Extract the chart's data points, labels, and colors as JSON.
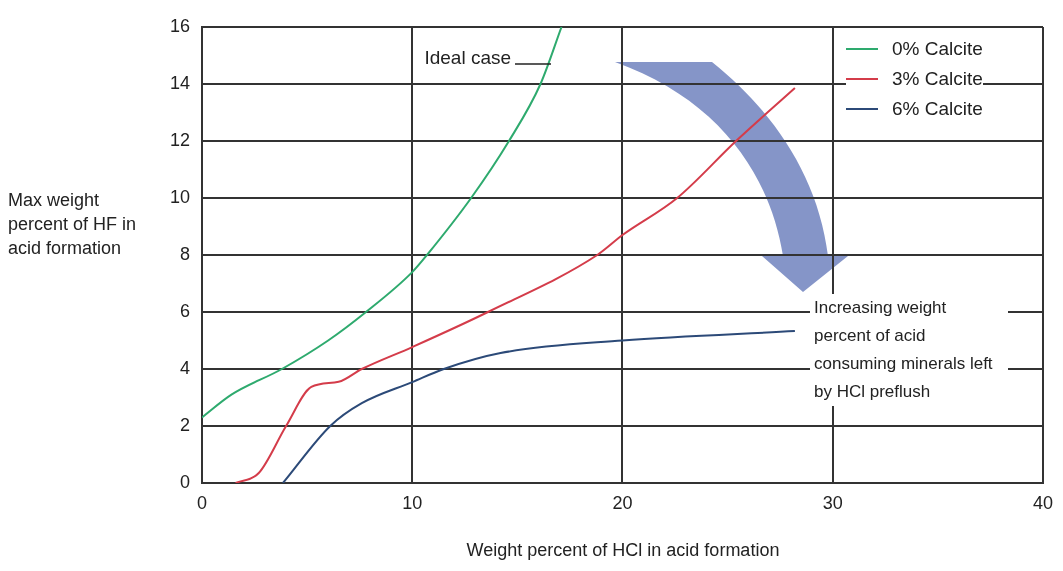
{
  "chart_data": {
    "type": "line",
    "xlabel": "Weight percent of HCl in acid formation",
    "ylabel": "Max weight percent of HF in acid formation",
    "xlim": [
      0,
      40
    ],
    "xticks": [
      0,
      10,
      20,
      30,
      40
    ],
    "ylim": [
      0,
      16
    ],
    "yticks": [
      0,
      2,
      4,
      6,
      8,
      10,
      12,
      14,
      16
    ],
    "grid": true,
    "legend": "top right",
    "marker": "none",
    "line_style": "solid",
    "series": [
      {
        "name": "0% Calcite",
        "color": "#2eaa6e",
        "x": [
          0,
          1.4,
          3.8,
          6.0,
          7.8,
          10,
          10.7,
          12.8,
          14.6,
          16.1,
          17.1
        ],
        "values": [
          2.3,
          3.1,
          4,
          5,
          6,
          7.4,
          8,
          10,
          12,
          14,
          16
        ]
      },
      {
        "name": "3% Calcite",
        "color": "#d43c4a",
        "x": [
          1.6,
          2.7,
          4.0,
          5.2,
          6.5,
          7.6,
          10,
          13.6,
          18.8,
          20,
          22.6,
          25.4,
          28.2
        ],
        "values": [
          0,
          0.35,
          2,
          3.37,
          3.55,
          4,
          4.77,
          6,
          8,
          8.7,
          10,
          12,
          13.86
        ]
      },
      {
        "name": "6% Calcite",
        "color": "#2c4a78",
        "x": [
          3.85,
          6.1,
          7.6,
          10,
          11.5,
          14.2,
          20,
          28.2
        ],
        "values": [
          0,
          2,
          2.8,
          3.54,
          4,
          4.56,
          5.0,
          5.33
        ]
      }
    ],
    "annotations": [
      {
        "text": "Ideal case",
        "x": 16.6,
        "y": 14.7
      },
      "Increasing weight percent of acid consuming minerals left by HCl preflush"
    ]
  }
}
